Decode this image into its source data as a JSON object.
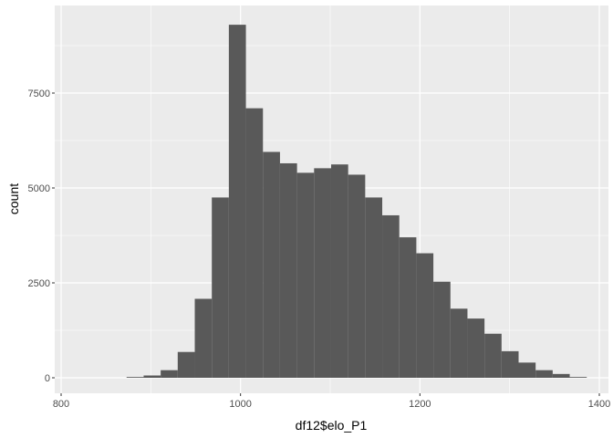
{
  "chart_data": {
    "type": "bar",
    "subtype": "histogram",
    "xlabel": "df12$elo_P1",
    "ylabel": "count",
    "xlim": [
      800,
      1400
    ],
    "ylim": [
      0,
      9300
    ],
    "x_ticks": [
      800,
      1000,
      1200,
      1400
    ],
    "x_tick_labels": [
      "800",
      "1000",
      "1200",
      "1400"
    ],
    "y_ticks": [
      0,
      2500,
      5000,
      7500
    ],
    "y_tick_labels": [
      "0",
      "2500",
      "5000",
      "7500"
    ],
    "grid": true,
    "legend": "none",
    "bar_color": "#595959",
    "panel_color": "#ebebeb",
    "grid_color": "#ffffff",
    "bins": [
      {
        "x0": 873,
        "x1": 892,
        "count": 20
      },
      {
        "x0": 892,
        "x1": 911,
        "count": 60
      },
      {
        "x0": 911,
        "x1": 930,
        "count": 200
      },
      {
        "x0": 930,
        "x1": 949,
        "count": 680
      },
      {
        "x0": 949,
        "x1": 968,
        "count": 2080
      },
      {
        "x0": 968,
        "x1": 987,
        "count": 4750
      },
      {
        "x0": 987,
        "x1": 1006,
        "count": 9300
      },
      {
        "x0": 1006,
        "x1": 1025,
        "count": 7100
      },
      {
        "x0": 1025,
        "x1": 1044,
        "count": 5950
      },
      {
        "x0": 1044,
        "x1": 1063,
        "count": 5650
      },
      {
        "x0": 1063,
        "x1": 1082,
        "count": 5400
      },
      {
        "x0": 1082,
        "x1": 1101,
        "count": 5520
      },
      {
        "x0": 1101,
        "x1": 1120,
        "count": 5620
      },
      {
        "x0": 1120,
        "x1": 1139,
        "count": 5350
      },
      {
        "x0": 1139,
        "x1": 1158,
        "count": 4750
      },
      {
        "x0": 1158,
        "x1": 1177,
        "count": 4280
      },
      {
        "x0": 1177,
        "x1": 1196,
        "count": 3700
      },
      {
        "x0": 1196,
        "x1": 1215,
        "count": 3280
      },
      {
        "x0": 1215,
        "x1": 1234,
        "count": 2530
      },
      {
        "x0": 1234,
        "x1": 1253,
        "count": 1820
      },
      {
        "x0": 1253,
        "x1": 1272,
        "count": 1560
      },
      {
        "x0": 1272,
        "x1": 1291,
        "count": 1160
      },
      {
        "x0": 1291,
        "x1": 1310,
        "count": 700
      },
      {
        "x0": 1310,
        "x1": 1329,
        "count": 400
      },
      {
        "x0": 1329,
        "x1": 1348,
        "count": 200
      },
      {
        "x0": 1348,
        "x1": 1367,
        "count": 100
      },
      {
        "x0": 1367,
        "x1": 1386,
        "count": 20
      }
    ]
  }
}
